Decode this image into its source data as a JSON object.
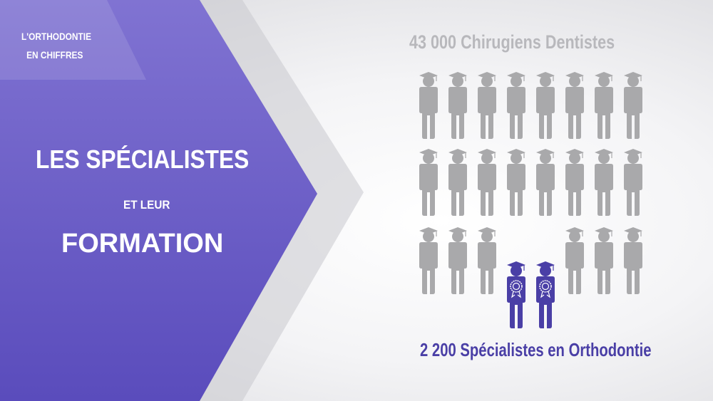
{
  "left_panel": {
    "kicker_line1": "L'ORTHODONTIE",
    "kicker_line2": "EN CHIFFRES",
    "title_line1": "LES SPÉCIALISTES",
    "title_line2": "ET LEUR",
    "title_line3": "FORMATION"
  },
  "infographic": {
    "dentists_label": "43 000 Chirugiens Dentistes",
    "specialists_label": "2 200 Spécialistes en Orthodontie",
    "icon": "graduate-person-icon",
    "specialist_icon": "graduate-person-with-rosette-icon",
    "colors": {
      "purple": "#6a5cc6",
      "gray_icon": "#a9a9ab",
      "specialist": "#4a3fa6"
    }
  }
}
